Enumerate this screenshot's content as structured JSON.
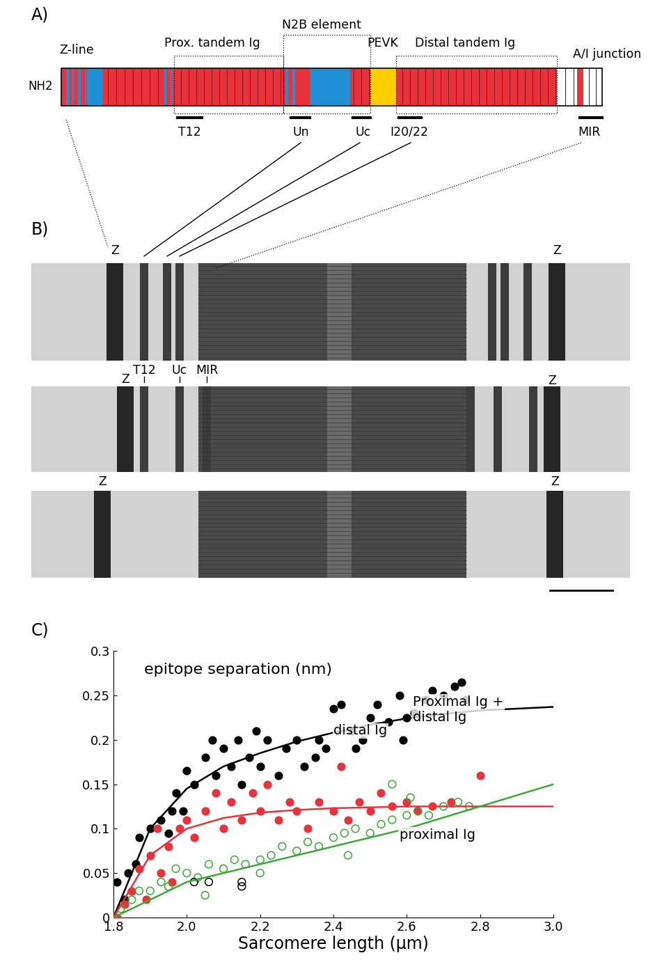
{
  "panel_a": {
    "label": "A)",
    "n_terminus": "NH2",
    "regions": [
      "Z-line",
      "Prox. tandem Ig",
      "N2B element",
      "PEVK",
      "Distal tandem Ig",
      "A/I junction"
    ],
    "epitopes": [
      "T12",
      "Un",
      "Uc",
      "I20/22",
      "MIR"
    ]
  },
  "panel_b": {
    "label": "B)",
    "strips": [
      {
        "labels": [
          "Z",
          "Z"
        ]
      },
      {
        "labels": [
          "Z",
          "T12",
          "Uc",
          "MIR",
          "Z"
        ]
      },
      {
        "labels": [
          "Z",
          "Z"
        ]
      }
    ]
  },
  "chart_data": {
    "type": "scatter",
    "label": "C)",
    "text": "epitope separation (nm)",
    "x_label": "Sarcomere length (µm)",
    "xlim": [
      1.8,
      3.0
    ],
    "xticks": [
      1.8,
      2.0,
      2.2,
      2.4,
      2.6,
      2.8,
      3.0
    ],
    "ylim": [
      0,
      0.3
    ],
    "yticks": [
      0,
      0.05,
      0.1,
      0.15,
      0.2,
      0.25,
      0.3
    ],
    "grid": false,
    "series": [
      {
        "type": "scatter",
        "color": "#000000",
        "marker": "filled",
        "x": [
          1.8,
          1.81,
          1.83,
          1.84,
          1.86,
          1.87,
          1.9,
          1.93,
          1.96,
          1.97,
          1.99,
          2.0,
          2.02,
          2.05,
          2.07,
          2.08,
          2.1,
          2.12,
          2.14,
          2.17,
          2.19,
          2.2,
          2.22,
          2.25,
          2.27,
          2.3,
          2.32,
          2.35,
          2.38,
          2.4,
          2.42,
          2.45,
          2.48,
          2.5,
          2.52,
          2.55,
          2.58,
          2.6,
          2.62,
          2.65,
          2.67,
          2.7,
          2.73,
          2.75,
          2.76,
          2.59,
          2.46,
          2.36,
          2.15,
          1.95
        ],
        "values": [
          0.0,
          0.04,
          0.02,
          0.05,
          0.06,
          0.09,
          0.1,
          0.11,
          0.12,
          0.14,
          0.12,
          0.165,
          0.15,
          0.18,
          0.2,
          0.16,
          0.19,
          0.17,
          0.2,
          0.18,
          0.21,
          0.17,
          0.2,
          0.16,
          0.19,
          0.2,
          0.17,
          0.18,
          0.19,
          0.235,
          0.24,
          0.21,
          0.2,
          0.225,
          0.24,
          0.22,
          0.25,
          0.225,
          0.23,
          0.245,
          0.255,
          0.25,
          0.26,
          0.265,
          0.245,
          0.2,
          0.19,
          0.2,
          0.15,
          0.095
        ]
      },
      {
        "type": "scatter",
        "color": "#e8333c",
        "marker": "filled",
        "x": [
          1.81,
          1.83,
          1.85,
          1.87,
          1.9,
          1.92,
          1.95,
          1.98,
          2.0,
          2.02,
          2.05,
          2.08,
          2.1,
          2.12,
          2.15,
          2.18,
          2.2,
          2.22,
          2.25,
          2.28,
          2.3,
          2.33,
          2.36,
          2.4,
          2.42,
          2.44,
          2.47,
          2.5,
          2.53,
          2.56,
          2.6,
          2.63,
          2.67,
          2.72,
          2.8,
          1.96,
          1.93,
          1.89
        ],
        "values": [
          0.0,
          0.015,
          0.03,
          0.055,
          0.07,
          0.1,
          0.08,
          0.1,
          0.11,
          0.09,
          0.12,
          0.14,
          0.1,
          0.13,
          0.11,
          0.14,
          0.12,
          0.15,
          0.11,
          0.13,
          0.12,
          0.1,
          0.13,
          0.12,
          0.17,
          0.11,
          0.13,
          0.12,
          0.14,
          0.125,
          0.13,
          0.12,
          0.125,
          0.13,
          0.16,
          0.04,
          0.05,
          0.02
        ]
      },
      {
        "type": "scatter",
        "color": "#3aa935",
        "marker": "open",
        "x": [
          1.8,
          1.82,
          1.85,
          1.87,
          1.9,
          1.93,
          1.95,
          1.97,
          2.0,
          2.03,
          2.06,
          2.1,
          2.13,
          2.16,
          2.2,
          2.23,
          2.26,
          2.3,
          2.33,
          2.36,
          2.4,
          2.43,
          2.46,
          2.5,
          2.53,
          2.56,
          2.6,
          2.63,
          2.66,
          2.7,
          2.74,
          2.77,
          2.56,
          2.61,
          2.44,
          2.2,
          2.05
        ],
        "values": [
          0.0,
          0.01,
          0.02,
          0.03,
          0.03,
          0.04,
          0.035,
          0.055,
          0.05,
          0.045,
          0.06,
          0.055,
          0.065,
          0.06,
          0.065,
          0.07,
          0.08,
          0.075,
          0.085,
          0.08,
          0.09,
          0.095,
          0.1,
          0.095,
          0.105,
          0.11,
          0.115,
          0.12,
          0.115,
          0.125,
          0.13,
          0.125,
          0.15,
          0.135,
          0.07,
          0.05,
          0.025
        ]
      },
      {
        "type": "scatter",
        "color": "#000000",
        "marker": "open",
        "x": [
          2.02,
          2.06,
          2.15,
          2.15
        ],
        "values": [
          0.04,
          0.04,
          0.04,
          0.035
        ]
      },
      {
        "type": "line",
        "name": "Proximal Ig +\ndistal Ig",
        "color": "#000000",
        "x": [
          1.8,
          1.9,
          2.0,
          2.1,
          2.2,
          2.3,
          2.4,
          2.5,
          2.6,
          2.7,
          2.8,
          2.9,
          3.0
        ],
        "values": [
          0,
          0.1,
          0.145,
          0.17,
          0.185,
          0.198,
          0.208,
          0.217,
          0.224,
          0.229,
          0.233,
          0.235,
          0.237
        ]
      },
      {
        "type": "line",
        "name": "distal Ig",
        "color": "#e8333c",
        "x": [
          1.8,
          1.9,
          2.0,
          2.1,
          2.2,
          2.3,
          2.4,
          2.5,
          2.6,
          2.7,
          2.8,
          2.9,
          3.0
        ],
        "values": [
          0,
          0.07,
          0.1,
          0.112,
          0.118,
          0.121,
          0.123,
          0.124,
          0.125,
          0.125,
          0.125,
          0.125,
          0.125
        ]
      },
      {
        "type": "line",
        "name": "proximal Ig",
        "color": "#3aa935",
        "x": [
          1.8,
          2.0,
          2.2,
          2.4,
          2.6,
          2.8,
          3.0
        ],
        "values": [
          0,
          0.04,
          0.06,
          0.08,
          0.1,
          0.125,
          0.15
        ]
      }
    ]
  }
}
